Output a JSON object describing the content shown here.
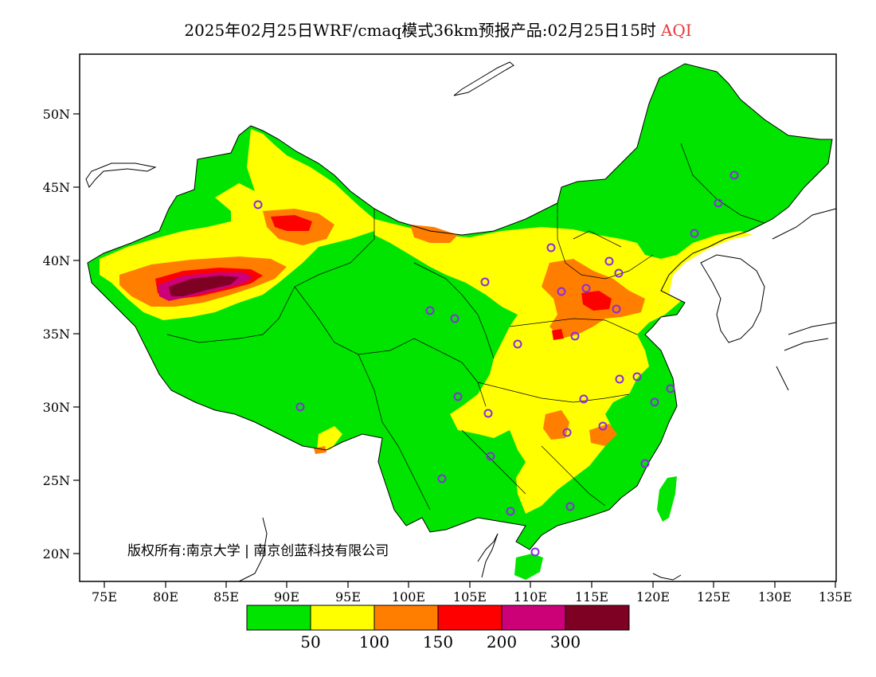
{
  "title": {
    "main": "2025年02月25日WRF/cmaq模式36km预报产品:02月25日15时",
    "variable": "AQI"
  },
  "axes": {
    "lat_labels": [
      "50N",
      "45N",
      "40N",
      "35N",
      "30N",
      "25N",
      "20N"
    ],
    "lon_labels": [
      "75E",
      "80E",
      "85E",
      "90E",
      "95E",
      "100E",
      "105E",
      "110E",
      "115E",
      "120E",
      "125E",
      "130E",
      "135E"
    ]
  },
  "legend": {
    "colors": [
      "#00e400",
      "#ffff00",
      "#ff7e00",
      "#ff0000",
      "#cc0077",
      "#7e0023"
    ],
    "labels": [
      "50",
      "100",
      "150",
      "200",
      "300"
    ]
  },
  "copyright": "版权所有:南京大学 | 南京创蓝科技有限公司",
  "colors": {
    "good": "#00e400",
    "moderate": "#ffff00",
    "usg": "#ff7e00",
    "unhealthy": "#ff0000",
    "very_unhealthy": "#cc0077",
    "hazardous": "#7e0023",
    "station_marker": "#8a2be2"
  }
}
